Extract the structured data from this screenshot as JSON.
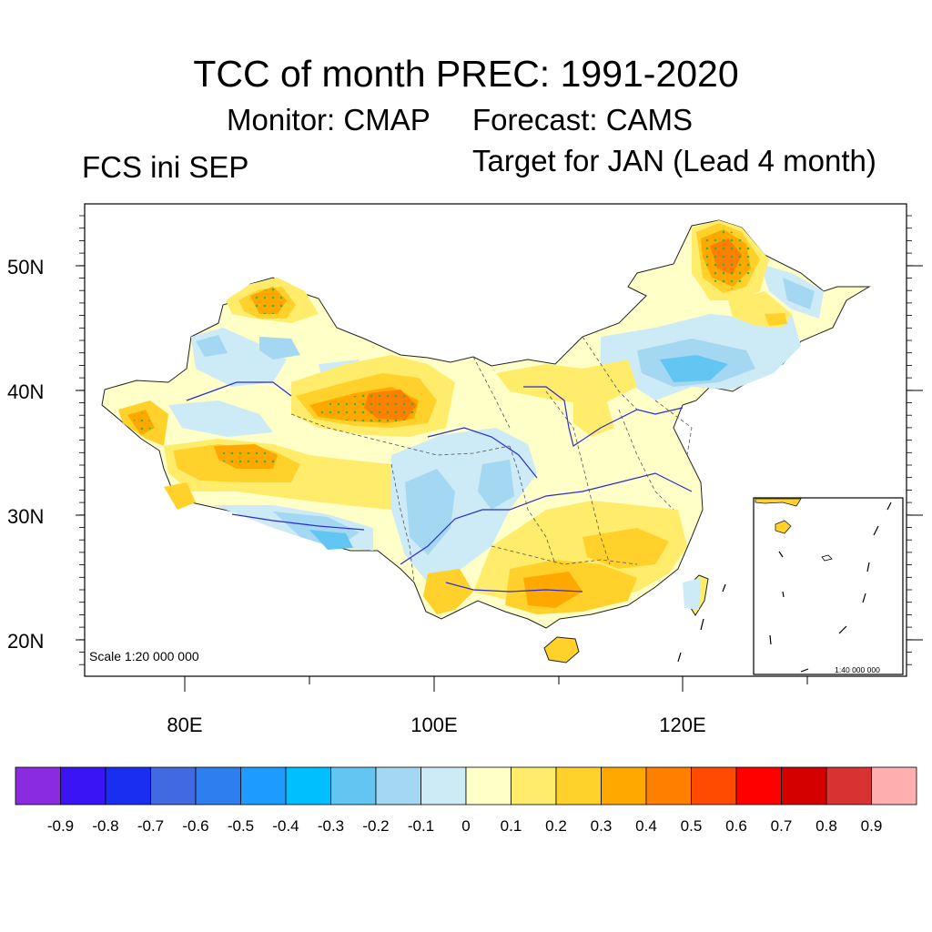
{
  "figure": {
    "title": "TCC of month PREC: 1991-2020",
    "monitor": "Monitor: CMAP",
    "forecast": "Forecast: CAMS",
    "init": "FCS ini SEP",
    "target": "Target for JAN (Lead 4 month)"
  },
  "map": {
    "lat_labels": [
      "50N",
      "40N",
      "30N",
      "20N"
    ],
    "lon_labels": [
      "80E",
      "100E",
      "120E"
    ],
    "scale_main": "Scale 1:20 000 000",
    "scale_inset": "1:40 000 000"
  },
  "colorbar": {
    "colors": [
      "#8a2be2",
      "#3a14f5",
      "#1a2ef2",
      "#4169e1",
      "#2d7ff0",
      "#1e9bff",
      "#00bfff",
      "#63c6f2",
      "#a4d8f2",
      "#cdeaf7",
      "#ffffc8",
      "#ffec6b",
      "#ffd12a",
      "#ffa800",
      "#ff7f00",
      "#ff4a00",
      "#ff0000",
      "#d40000",
      "#d83232",
      "#ffafaf"
    ],
    "labels": [
      "-0.9",
      "-0.8",
      "-0.7",
      "-0.6",
      "-0.5",
      "-0.4",
      "-0.3",
      "-0.2",
      "-0.1",
      "0",
      "0.1",
      "0.2",
      "0.3",
      "0.4",
      "0.5",
      "0.6",
      "0.7",
      "0.8",
      "0.9"
    ]
  }
}
